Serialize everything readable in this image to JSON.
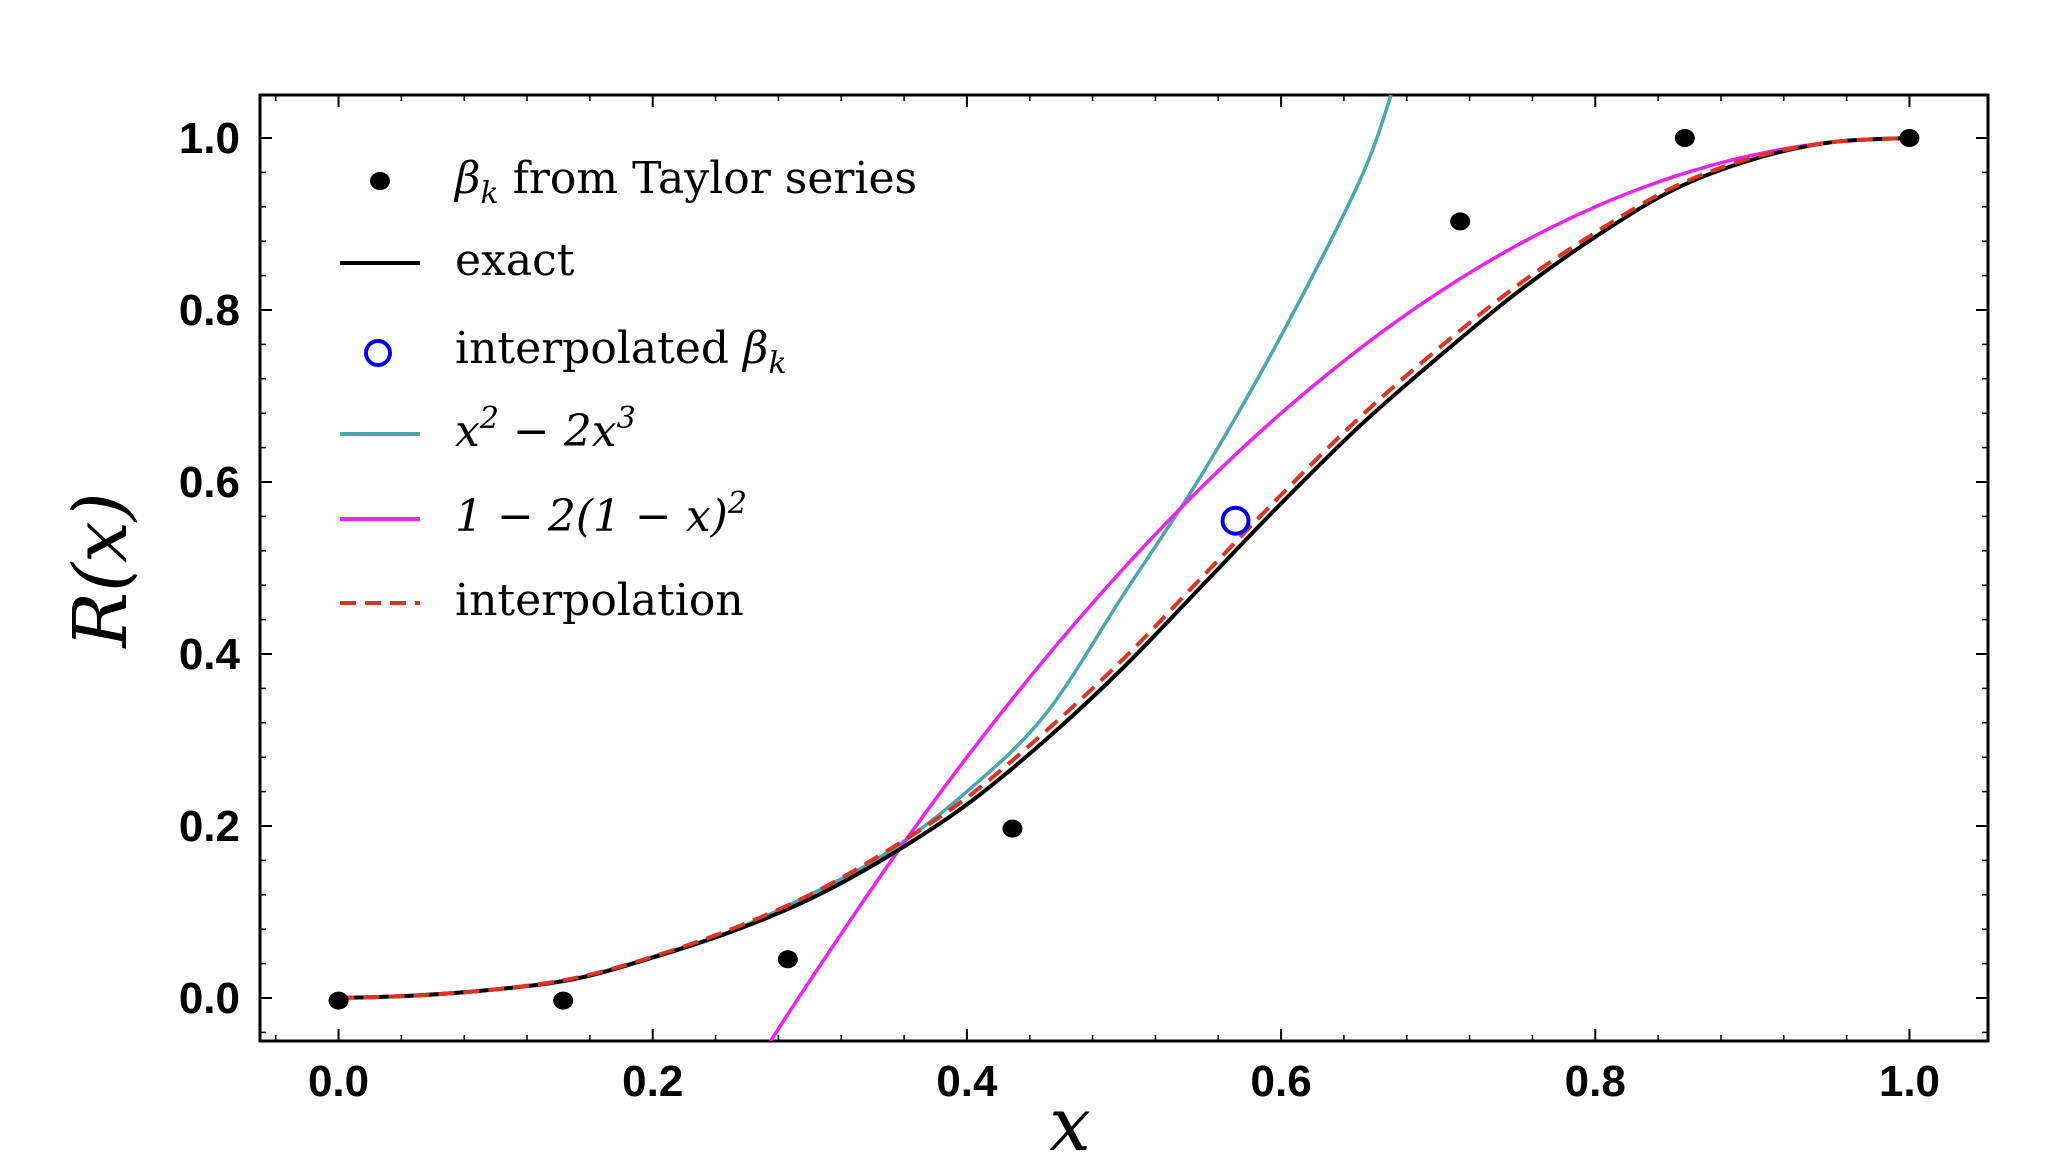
{
  "chart_data": {
    "type": "line",
    "title": "",
    "xlabel": "x",
    "ylabel": "R(x)",
    "xlim": [
      -0.05,
      1.05
    ],
    "ylim": [
      -0.05,
      1.05
    ],
    "x_ticks": [
      "0.0",
      "0.2",
      "0.4",
      "0.6",
      "0.8",
      "1.0"
    ],
    "y_ticks": [
      "0.0",
      "0.2",
      "0.4",
      "0.6",
      "0.8",
      "1.0"
    ],
    "grid": false,
    "legend_position": "upper-left",
    "series": [
      {
        "name": "β_k from Taylor series",
        "label_parts": {
          "symbol": "β",
          "sub": "k",
          "text": " from Taylor series"
        },
        "kind": "scatter-filled",
        "color": "#000000",
        "x": [
          0.0,
          0.143,
          0.286,
          0.429,
          0.571,
          0.714,
          0.857,
          1.0
        ],
        "y": [
          -0.003,
          -0.003,
          0.045,
          0.197,
          0.555,
          0.903,
          1.0,
          1.0
        ],
        "drawn_points": [
          0,
          1,
          2,
          3,
          5,
          6,
          7
        ]
      },
      {
        "name": "exact",
        "kind": "line",
        "color": "#000000",
        "x": [
          0.0,
          0.05,
          0.1,
          0.15,
          0.2,
          0.25,
          0.3,
          0.35,
          0.4,
          0.45,
          0.5,
          0.55,
          0.6,
          0.65,
          0.7,
          0.75,
          0.8,
          0.85,
          0.9,
          0.95,
          1.0
        ],
        "y": [
          0.0,
          0.003,
          0.01,
          0.022,
          0.047,
          0.077,
          0.115,
          0.165,
          0.225,
          0.3,
          0.385,
          0.48,
          0.575,
          0.665,
          0.745,
          0.82,
          0.885,
          0.94,
          0.975,
          0.995,
          1.0
        ]
      },
      {
        "name": "interpolated β_k",
        "label_parts": {
          "text": "interpolated ",
          "symbol": "β",
          "sub": "k"
        },
        "kind": "scatter-open",
        "color": "#0000ee",
        "x": [
          0.571
        ],
        "y": [
          0.555
        ]
      },
      {
        "name": "x^2 − 2x^3",
        "label_parts": {
          "pre": "x",
          "sup1": "2",
          "mid": " − 2x",
          "sup2": "3"
        },
        "kind": "line",
        "color": "#4aa7ad",
        "x": [
          0.0,
          0.05,
          0.1,
          0.15,
          0.2,
          0.25,
          0.3,
          0.35,
          0.4,
          0.45,
          0.5,
          0.55,
          0.6,
          0.65,
          0.67
        ],
        "y": [
          0.0,
          0.0025,
          0.01,
          0.0225,
          0.048,
          0.078,
          0.12,
          0.17,
          0.24,
          0.33,
          0.47,
          0.61,
          0.77,
          0.95,
          1.05
        ]
      },
      {
        "name": "1 − 2(1 − x)^2",
        "label_parts": {
          "pre": "1 − 2(1 − x)",
          "sup": "2"
        },
        "kind": "line",
        "color": "#ee22ee",
        "x": [
          0.275,
          0.3,
          0.35,
          0.4,
          0.45,
          0.5,
          0.55,
          0.6,
          0.65,
          0.7,
          0.75,
          0.8,
          0.85,
          0.9,
          0.95,
          1.0
        ],
        "y": [
          -0.05,
          0.02,
          0.155,
          0.28,
          0.395,
          0.5,
          0.595,
          0.68,
          0.755,
          0.82,
          0.875,
          0.92,
          0.955,
          0.98,
          0.995,
          1.0
        ]
      },
      {
        "name": "interpolation",
        "kind": "dashed-line",
        "color": "#dd3322",
        "x": [
          0.0,
          0.05,
          0.1,
          0.15,
          0.2,
          0.25,
          0.3,
          0.35,
          0.4,
          0.45,
          0.5,
          0.55,
          0.6,
          0.65,
          0.7,
          0.75,
          0.8,
          0.85,
          0.9,
          0.95,
          1.0
        ],
        "y": [
          0.0,
          0.003,
          0.01,
          0.023,
          0.048,
          0.08,
          0.12,
          0.172,
          0.233,
          0.31,
          0.395,
          0.49,
          0.585,
          0.675,
          0.755,
          0.828,
          0.89,
          0.943,
          0.977,
          0.995,
          1.0
        ]
      }
    ]
  }
}
